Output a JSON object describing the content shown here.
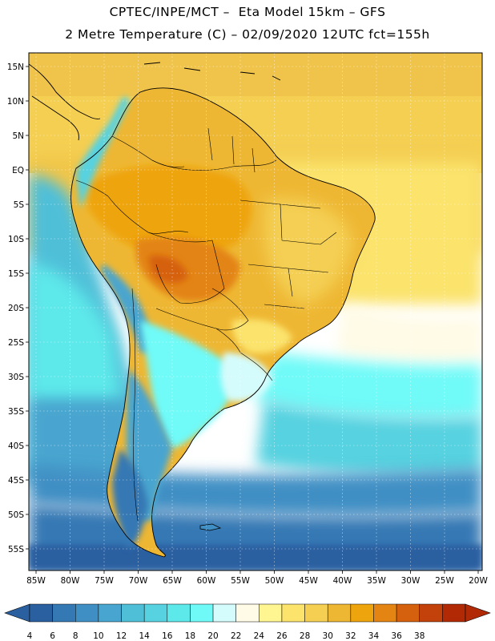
{
  "header": {
    "line1": "CPTEC/INPE/MCT –  Eta Model 15km – GFS",
    "line2": "2 Metre Temperature (C) – 02/09/2020 12UTC fct=155h"
  },
  "map": {
    "lat_labels": [
      "15N",
      "10N",
      "5N",
      "EQ",
      "5S",
      "10S",
      "15S",
      "20S",
      "25S",
      "30S",
      "35S",
      "40S",
      "45S",
      "50S",
      "55S"
    ],
    "lon_labels": [
      "85W",
      "80W",
      "75W",
      "70W",
      "65W",
      "60W",
      "55W",
      "50W",
      "45W",
      "40W",
      "35W",
      "30W",
      "25W",
      "20W"
    ]
  },
  "colorbar": {
    "labels": [
      "4",
      "6",
      "8",
      "10",
      "12",
      "14",
      "16",
      "18",
      "20",
      "22",
      "24",
      "26",
      "28",
      "30",
      "32",
      "34",
      "36",
      "38"
    ],
    "colors": [
      "#2a5fa0",
      "#3478b4",
      "#3f8fc4",
      "#48a5cf",
      "#4fbfd8",
      "#57d2e0",
      "#5de8ea",
      "#6ffaf8",
      "#d4fcfc",
      "#fffbe6",
      "#fff591",
      "#fbe36c",
      "#f4cf52",
      "#eeb733",
      "#eea40c",
      "#e38413",
      "#d5600e",
      "#c3410b",
      "#b12a05"
    ],
    "under_color": "#2a5fa0",
    "over_color": "#b12a05"
  }
}
